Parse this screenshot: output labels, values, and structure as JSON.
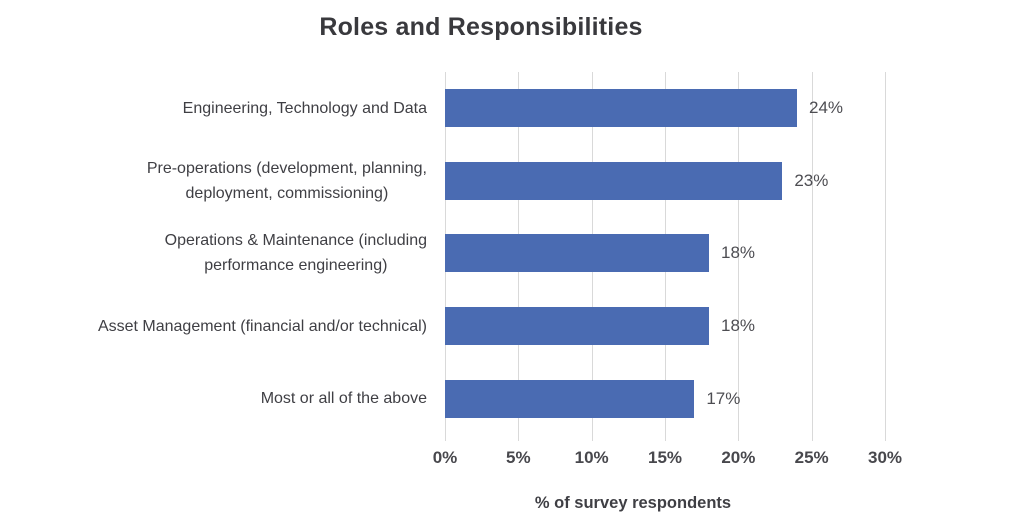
{
  "title": "Roles and Responsibilities",
  "colors": {
    "bar": "#4a6bb2",
    "gridline": "#d9d9d9",
    "title_text": "#39393d",
    "label_text": "#3f3f44",
    "value_text": "#4d4d52"
  },
  "chart_data": {
    "type": "bar",
    "orientation": "horizontal",
    "title": "Roles and Responsibilities",
    "categories": [
      "Engineering, Technology and Data",
      "Pre-operations (development, planning, deployment, commissioning)",
      "Operations & Maintenance (including performance engineering)",
      "Asset Management (financial and/or technical)",
      "Most or all of the above"
    ],
    "category_lines": [
      [
        "Engineering, Technology and Data"
      ],
      [
        "Pre-operations (development, planning,",
        "deployment, commissioning)"
      ],
      [
        "Operations & Maintenance (including",
        "performance engineering)"
      ],
      [
        "Asset Management (financial and/or technical)"
      ],
      [
        "Most or all of the above"
      ]
    ],
    "values": [
      24,
      23,
      18,
      18,
      17
    ],
    "value_labels": [
      "24%",
      "23%",
      "18%",
      "18%",
      "17%"
    ],
    "xlabel": "% of survey respondents",
    "ylabel": "",
    "xlim": [
      0,
      30
    ],
    "xticks": [
      "0%",
      "5%",
      "10%",
      "15%",
      "20%",
      "25%",
      "30%"
    ],
    "xtick_values": [
      0,
      5,
      10,
      15,
      20,
      25,
      30
    ],
    "grid": "vertical",
    "legend": "none"
  }
}
